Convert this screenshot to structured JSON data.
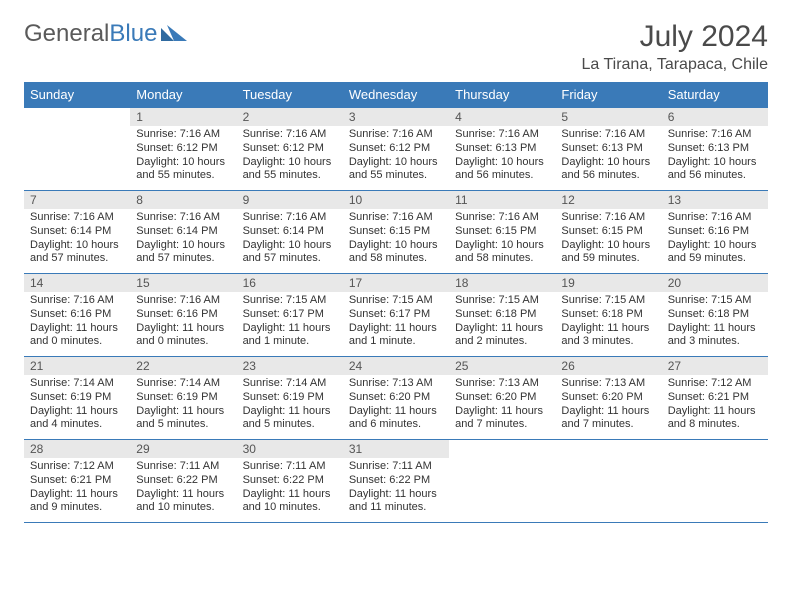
{
  "logo": {
    "part1": "General",
    "part2": "Blue"
  },
  "title": "July 2024",
  "location": "La Tirana, Tarapaca, Chile",
  "colors": {
    "header_bg": "#3a7ab8",
    "header_text": "#ffffff",
    "daynum_bg": "#e8e8e8",
    "text": "#333333",
    "rule": "#3a7ab8"
  },
  "weekdays": [
    "Sunday",
    "Monday",
    "Tuesday",
    "Wednesday",
    "Thursday",
    "Friday",
    "Saturday"
  ],
  "weeks": [
    [
      {
        "n": "",
        "sr": "",
        "ss": "",
        "dl": ""
      },
      {
        "n": "1",
        "sr": "Sunrise: 7:16 AM",
        "ss": "Sunset: 6:12 PM",
        "dl": "Daylight: 10 hours and 55 minutes."
      },
      {
        "n": "2",
        "sr": "Sunrise: 7:16 AM",
        "ss": "Sunset: 6:12 PM",
        "dl": "Daylight: 10 hours and 55 minutes."
      },
      {
        "n": "3",
        "sr": "Sunrise: 7:16 AM",
        "ss": "Sunset: 6:12 PM",
        "dl": "Daylight: 10 hours and 55 minutes."
      },
      {
        "n": "4",
        "sr": "Sunrise: 7:16 AM",
        "ss": "Sunset: 6:13 PM",
        "dl": "Daylight: 10 hours and 56 minutes."
      },
      {
        "n": "5",
        "sr": "Sunrise: 7:16 AM",
        "ss": "Sunset: 6:13 PM",
        "dl": "Daylight: 10 hours and 56 minutes."
      },
      {
        "n": "6",
        "sr": "Sunrise: 7:16 AM",
        "ss": "Sunset: 6:13 PM",
        "dl": "Daylight: 10 hours and 56 minutes."
      }
    ],
    [
      {
        "n": "7",
        "sr": "Sunrise: 7:16 AM",
        "ss": "Sunset: 6:14 PM",
        "dl": "Daylight: 10 hours and 57 minutes."
      },
      {
        "n": "8",
        "sr": "Sunrise: 7:16 AM",
        "ss": "Sunset: 6:14 PM",
        "dl": "Daylight: 10 hours and 57 minutes."
      },
      {
        "n": "9",
        "sr": "Sunrise: 7:16 AM",
        "ss": "Sunset: 6:14 PM",
        "dl": "Daylight: 10 hours and 57 minutes."
      },
      {
        "n": "10",
        "sr": "Sunrise: 7:16 AM",
        "ss": "Sunset: 6:15 PM",
        "dl": "Daylight: 10 hours and 58 minutes."
      },
      {
        "n": "11",
        "sr": "Sunrise: 7:16 AM",
        "ss": "Sunset: 6:15 PM",
        "dl": "Daylight: 10 hours and 58 minutes."
      },
      {
        "n": "12",
        "sr": "Sunrise: 7:16 AM",
        "ss": "Sunset: 6:15 PM",
        "dl": "Daylight: 10 hours and 59 minutes."
      },
      {
        "n": "13",
        "sr": "Sunrise: 7:16 AM",
        "ss": "Sunset: 6:16 PM",
        "dl": "Daylight: 10 hours and 59 minutes."
      }
    ],
    [
      {
        "n": "14",
        "sr": "Sunrise: 7:16 AM",
        "ss": "Sunset: 6:16 PM",
        "dl": "Daylight: 11 hours and 0 minutes."
      },
      {
        "n": "15",
        "sr": "Sunrise: 7:16 AM",
        "ss": "Sunset: 6:16 PM",
        "dl": "Daylight: 11 hours and 0 minutes."
      },
      {
        "n": "16",
        "sr": "Sunrise: 7:15 AM",
        "ss": "Sunset: 6:17 PM",
        "dl": "Daylight: 11 hours and 1 minute."
      },
      {
        "n": "17",
        "sr": "Sunrise: 7:15 AM",
        "ss": "Sunset: 6:17 PM",
        "dl": "Daylight: 11 hours and 1 minute."
      },
      {
        "n": "18",
        "sr": "Sunrise: 7:15 AM",
        "ss": "Sunset: 6:18 PM",
        "dl": "Daylight: 11 hours and 2 minutes."
      },
      {
        "n": "19",
        "sr": "Sunrise: 7:15 AM",
        "ss": "Sunset: 6:18 PM",
        "dl": "Daylight: 11 hours and 3 minutes."
      },
      {
        "n": "20",
        "sr": "Sunrise: 7:15 AM",
        "ss": "Sunset: 6:18 PM",
        "dl": "Daylight: 11 hours and 3 minutes."
      }
    ],
    [
      {
        "n": "21",
        "sr": "Sunrise: 7:14 AM",
        "ss": "Sunset: 6:19 PM",
        "dl": "Daylight: 11 hours and 4 minutes."
      },
      {
        "n": "22",
        "sr": "Sunrise: 7:14 AM",
        "ss": "Sunset: 6:19 PM",
        "dl": "Daylight: 11 hours and 5 minutes."
      },
      {
        "n": "23",
        "sr": "Sunrise: 7:14 AM",
        "ss": "Sunset: 6:19 PM",
        "dl": "Daylight: 11 hours and 5 minutes."
      },
      {
        "n": "24",
        "sr": "Sunrise: 7:13 AM",
        "ss": "Sunset: 6:20 PM",
        "dl": "Daylight: 11 hours and 6 minutes."
      },
      {
        "n": "25",
        "sr": "Sunrise: 7:13 AM",
        "ss": "Sunset: 6:20 PM",
        "dl": "Daylight: 11 hours and 7 minutes."
      },
      {
        "n": "26",
        "sr": "Sunrise: 7:13 AM",
        "ss": "Sunset: 6:20 PM",
        "dl": "Daylight: 11 hours and 7 minutes."
      },
      {
        "n": "27",
        "sr": "Sunrise: 7:12 AM",
        "ss": "Sunset: 6:21 PM",
        "dl": "Daylight: 11 hours and 8 minutes."
      }
    ],
    [
      {
        "n": "28",
        "sr": "Sunrise: 7:12 AM",
        "ss": "Sunset: 6:21 PM",
        "dl": "Daylight: 11 hours and 9 minutes."
      },
      {
        "n": "29",
        "sr": "Sunrise: 7:11 AM",
        "ss": "Sunset: 6:22 PM",
        "dl": "Daylight: 11 hours and 10 minutes."
      },
      {
        "n": "30",
        "sr": "Sunrise: 7:11 AM",
        "ss": "Sunset: 6:22 PM",
        "dl": "Daylight: 11 hours and 10 minutes."
      },
      {
        "n": "31",
        "sr": "Sunrise: 7:11 AM",
        "ss": "Sunset: 6:22 PM",
        "dl": "Daylight: 11 hours and 11 minutes."
      },
      {
        "n": "",
        "sr": "",
        "ss": "",
        "dl": ""
      },
      {
        "n": "",
        "sr": "",
        "ss": "",
        "dl": ""
      },
      {
        "n": "",
        "sr": "",
        "ss": "",
        "dl": ""
      }
    ]
  ]
}
